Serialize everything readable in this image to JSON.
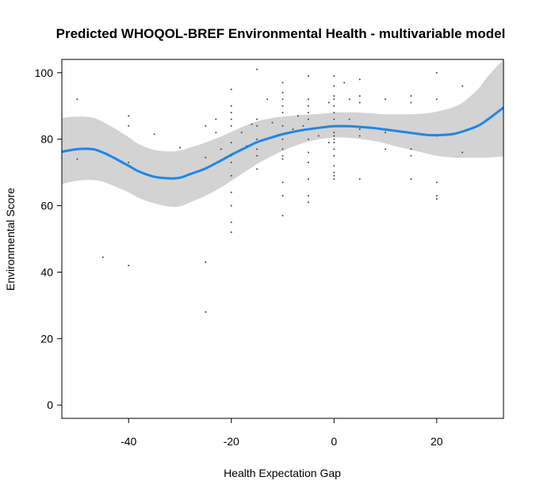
{
  "chart_data": {
    "type": "scatter",
    "title": "Predicted WHOQOL-BREF Environmental Health - multivariable model",
    "xlabel": "Health Expectation Gap",
    "ylabel": "Environmental Score",
    "xlim": [
      -53,
      33
    ],
    "ylim": [
      -4,
      104
    ],
    "x_ticks": [
      -40,
      -20,
      0,
      20
    ],
    "y_ticks": [
      0,
      20,
      40,
      60,
      80,
      100
    ],
    "grid": false,
    "colors": {
      "points": "#444444",
      "fit_line": "#1f86e8",
      "band": "#d3d3d3"
    },
    "points": [
      [
        -50,
        92
      ],
      [
        -50,
        74
      ],
      [
        -45,
        44.5
      ],
      [
        -40,
        87
      ],
      [
        -40,
        84
      ],
      [
        -40,
        73
      ],
      [
        -40,
        42
      ],
      [
        -35,
        81.5
      ],
      [
        -30,
        77.5
      ],
      [
        -25,
        84
      ],
      [
        -25,
        74.5
      ],
      [
        -25,
        43
      ],
      [
        -25,
        28
      ],
      [
        -23,
        86
      ],
      [
        -23,
        82
      ],
      [
        -22,
        77
      ],
      [
        -20,
        95
      ],
      [
        -20,
        90
      ],
      [
        -20,
        88
      ],
      [
        -20,
        86
      ],
      [
        -20,
        84
      ],
      [
        -20,
        79
      ],
      [
        -20,
        75
      ],
      [
        -20,
        73
      ],
      [
        -20,
        69
      ],
      [
        -20,
        64
      ],
      [
        -20,
        60
      ],
      [
        -20,
        55
      ],
      [
        -20,
        52
      ],
      [
        -18,
        82
      ],
      [
        -17,
        78
      ],
      [
        -16,
        84.5
      ],
      [
        -15,
        101
      ],
      [
        -15,
        86
      ],
      [
        -15,
        84
      ],
      [
        -15,
        80
      ],
      [
        -15,
        77
      ],
      [
        -15,
        75
      ],
      [
        -15,
        71
      ],
      [
        -13,
        92
      ],
      [
        -12,
        85
      ],
      [
        -10,
        97
      ],
      [
        -10,
        94
      ],
      [
        -10,
        92
      ],
      [
        -10,
        90
      ],
      [
        -10,
        88
      ],
      [
        -10,
        84
      ],
      [
        -10,
        80
      ],
      [
        -10,
        77
      ],
      [
        -10,
        75
      ],
      [
        -10,
        74
      ],
      [
        -10,
        67
      ],
      [
        -10,
        63
      ],
      [
        -10,
        57
      ],
      [
        -8,
        83
      ],
      [
        -7,
        87
      ],
      [
        -6,
        84
      ],
      [
        -5,
        99
      ],
      [
        -5,
        92
      ],
      [
        -5,
        90
      ],
      [
        -5,
        88
      ],
      [
        -5,
        86
      ],
      [
        -5,
        83
      ],
      [
        -5,
        80
      ],
      [
        -5,
        76
      ],
      [
        -5,
        73
      ],
      [
        -5,
        68
      ],
      [
        -5,
        63
      ],
      [
        -5,
        61
      ],
      [
        -3,
        81
      ],
      [
        -1,
        91
      ],
      [
        -1,
        79
      ],
      [
        0,
        99
      ],
      [
        0,
        96
      ],
      [
        0,
        93
      ],
      [
        0,
        92
      ],
      [
        0,
        90
      ],
      [
        0,
        88
      ],
      [
        0,
        86
      ],
      [
        0,
        84
      ],
      [
        0,
        82
      ],
      [
        0,
        81
      ],
      [
        0,
        80
      ],
      [
        0,
        79
      ],
      [
        0,
        77
      ],
      [
        0,
        75
      ],
      [
        0,
        72
      ],
      [
        0,
        70
      ],
      [
        0,
        69
      ],
      [
        0,
        68
      ],
      [
        2,
        97
      ],
      [
        3,
        92
      ],
      [
        3,
        86
      ],
      [
        5,
        98
      ],
      [
        5,
        93
      ],
      [
        5,
        91
      ],
      [
        5,
        83
      ],
      [
        5,
        81
      ],
      [
        5,
        68
      ],
      [
        10,
        92
      ],
      [
        10,
        82
      ],
      [
        10,
        77
      ],
      [
        15,
        93
      ],
      [
        15,
        91
      ],
      [
        15,
        77
      ],
      [
        15,
        75
      ],
      [
        15,
        68
      ],
      [
        20,
        100
      ],
      [
        20,
        92
      ],
      [
        20,
        81
      ],
      [
        20,
        67
      ],
      [
        20,
        63
      ],
      [
        20,
        62
      ],
      [
        25,
        96
      ],
      [
        25,
        76
      ]
    ],
    "fit": {
      "x": [
        -53,
        -50,
        -47,
        -45,
        -43,
        -40,
        -38,
        -35,
        -32,
        -30,
        -28,
        -25,
        -22,
        -20,
        -17,
        -15,
        -12,
        -10,
        -7,
        -5,
        -2,
        0,
        3,
        5,
        8,
        10,
        13,
        15,
        18,
        20,
        23,
        25,
        28,
        30,
        33
      ],
      "y": [
        76.2,
        77.0,
        77.0,
        76.0,
        74.5,
        72.0,
        70.3,
        68.7,
        68.2,
        68.4,
        69.5,
        71.2,
        73.6,
        75.3,
        77.6,
        79.1,
        80.6,
        81.5,
        82.5,
        83.0,
        83.6,
        83.9,
        83.9,
        83.7,
        83.3,
        82.9,
        82.3,
        81.9,
        81.3,
        81.2,
        81.5,
        82.3,
        84.0,
        86.0,
        89.5
      ],
      "lower": [
        66.5,
        67.5,
        67.7,
        67.2,
        66.0,
        64.0,
        62.3,
        60.7,
        59.7,
        59.8,
        61.0,
        63.0,
        65.5,
        67.5,
        70.5,
        72.5,
        75.0,
        76.5,
        78.3,
        79.3,
        80.2,
        80.5,
        80.4,
        80.1,
        79.4,
        78.7,
        77.5,
        76.8,
        75.7,
        75.0,
        74.5,
        74.4,
        74.4,
        74.5,
        74.8
      ],
      "upper": [
        86.4,
        86.8,
        86.5,
        85.2,
        83.5,
        80.6,
        78.5,
        76.8,
        76.3,
        76.6,
        77.5,
        79.0,
        80.8,
        82.2,
        84.2,
        85.4,
        86.4,
        86.8,
        87.2,
        87.4,
        87.7,
        88.0,
        88.1,
        88.0,
        87.7,
        87.5,
        87.5,
        87.5,
        87.8,
        88.3,
        89.5,
        91.0,
        95.0,
        99.0,
        104.0
      ]
    }
  }
}
